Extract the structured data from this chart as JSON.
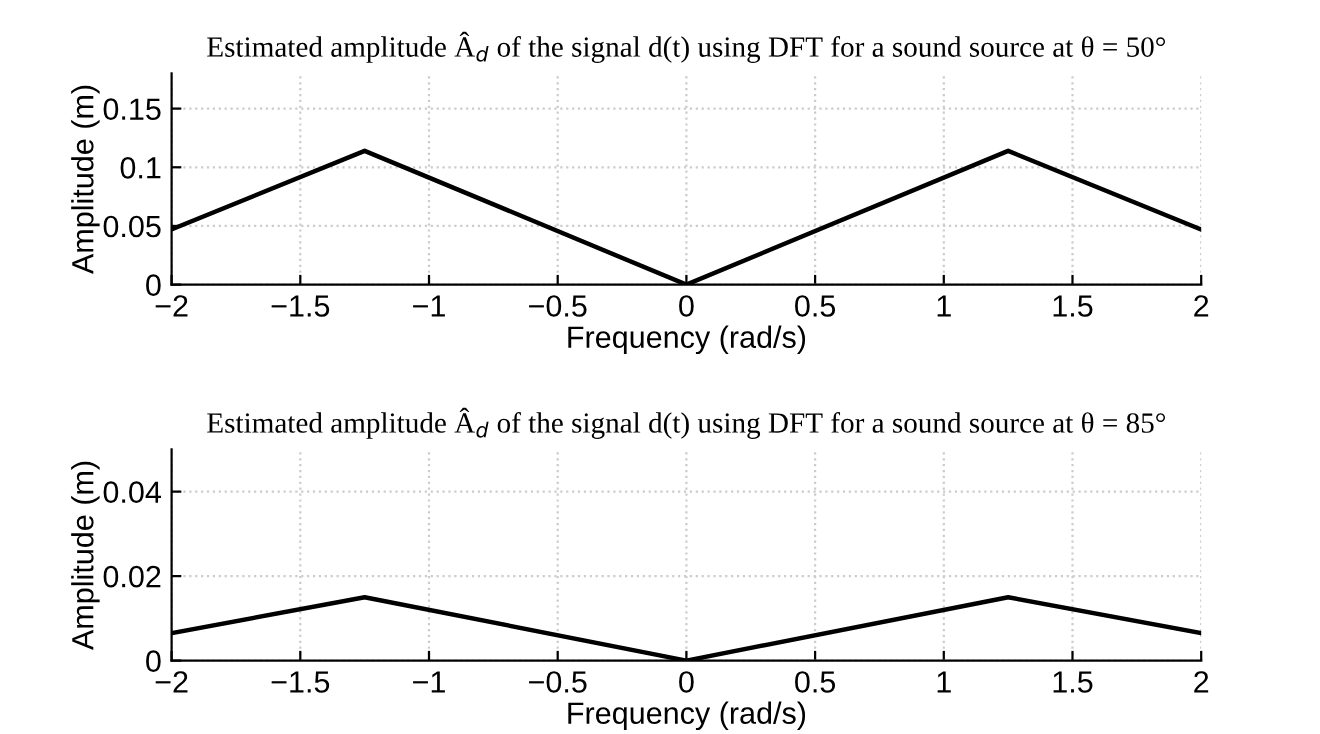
{
  "chart_data": [
    {
      "type": "line",
      "title": "Estimated amplitude Â$_{d}$ of the signal d(t) using DFT for a sound source at θ = 50°",
      "xlabel": "Frequency (rad/s)",
      "ylabel": "Amplitude (m)",
      "series": [
        {
          "color": "#000000",
          "x": [
            -2,
            -1.25,
            0,
            1.25,
            2
          ],
          "values": [
            0.047,
            0.114,
            0,
            0.114,
            0.047
          ]
        }
      ],
      "xlim": [
        -2,
        2
      ],
      "xticks": [
        {
          "value": -2,
          "label": "−2"
        },
        {
          "value": -1.5,
          "label": "−1.5"
        },
        {
          "value": -1,
          "label": "−1"
        },
        {
          "value": -0.5,
          "label": "−0.5"
        },
        0,
        0.5,
        1,
        1.5,
        2
      ],
      "ylim": [
        0,
        0.18
      ],
      "yticks": [
        0,
        0.05,
        0.1,
        0.15
      ],
      "grid": true,
      "line_style": "solid",
      "marker": "none"
    },
    {
      "type": "line",
      "title": "Estimated amplitude Â$_{d}$ of the signal d(t) using DFT for a sound source at θ = 85°",
      "xlabel": "Frequency (rad/s)",
      "ylabel": "Amplitude (m)",
      "series": [
        {
          "color": "#000000",
          "x": [
            -2,
            -1.25,
            0,
            1.25,
            2
          ],
          "values": [
            0.0065,
            0.015,
            0,
            0.015,
            0.0065
          ]
        }
      ],
      "xlim": [
        -2,
        2
      ],
      "xticks": [
        {
          "value": -2,
          "label": "−2"
        },
        {
          "value": -1.5,
          "label": "−1.5"
        },
        {
          "value": -1,
          "label": "−1"
        },
        {
          "value": -0.5,
          "label": "−0.5"
        },
        0,
        0.5,
        1,
        1.5,
        2
      ],
      "ylim": [
        0,
        0.05
      ],
      "yticks": [
        0,
        0.02,
        0.04
      ],
      "grid": true,
      "line_style": "solid",
      "marker": "none"
    }
  ]
}
